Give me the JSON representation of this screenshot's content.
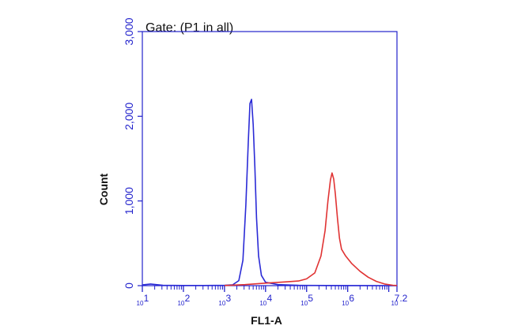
{
  "chart_data": {
    "type": "line",
    "title": "Gate: (P1 in all)",
    "xlabel": "FL1-A",
    "ylabel": "Count",
    "x_scale": "log",
    "xlim": [
      1,
      7.2
    ],
    "ylim": [
      0,
      3000
    ],
    "x_tick_labels": [
      {
        "base": "10",
        "exp": "1",
        "at": 1
      },
      {
        "base": "10",
        "exp": "2",
        "at": 2
      },
      {
        "base": "10",
        "exp": "3",
        "at": 3
      },
      {
        "base": "10",
        "exp": "4",
        "at": 4
      },
      {
        "base": "10",
        "exp": "5",
        "at": 5
      },
      {
        "base": "10",
        "exp": "6",
        "at": 6
      },
      {
        "base": "10",
        "exp": "7.2",
        "at": 7.2
      }
    ],
    "y_ticks": [
      0,
      1000,
      2000,
      3000
    ],
    "y_tick_labels": [
      "0",
      "1,000",
      "2,000",
      "3,000"
    ],
    "colors": {
      "axis": "#2222cc",
      "series_blue": "#2b2bd6",
      "series_red": "#e03333",
      "title": "#111111"
    },
    "series": [
      {
        "color": "#2b2bd6",
        "x": [
          1.0,
          1.2,
          1.5,
          2.0,
          2.5,
          3.0,
          3.2,
          3.35,
          3.45,
          3.52,
          3.58,
          3.62,
          3.66,
          3.7,
          3.74,
          3.78,
          3.83,
          3.9,
          4.0,
          4.3,
          4.8,
          5.5,
          6.5,
          7.2
        ],
        "y": [
          8,
          20,
          4,
          2,
          2,
          4,
          10,
          60,
          300,
          950,
          1700,
          2150,
          2200,
          1900,
          1400,
          800,
          350,
          120,
          40,
          12,
          4,
          2,
          1,
          0
        ]
      },
      {
        "color": "#e03333",
        "x": [
          3.0,
          3.5,
          4.0,
          4.5,
          4.8,
          5.0,
          5.2,
          5.35,
          5.45,
          5.52,
          5.58,
          5.62,
          5.66,
          5.7,
          5.75,
          5.8,
          5.85,
          5.95,
          6.1,
          6.3,
          6.5,
          6.7,
          6.9,
          7.1,
          7.2
        ],
        "y": [
          2,
          12,
          30,
          45,
          55,
          80,
          150,
          350,
          650,
          1000,
          1250,
          1330,
          1260,
          1080,
          800,
          560,
          430,
          350,
          260,
          170,
          100,
          50,
          20,
          5,
          2
        ]
      }
    ]
  }
}
